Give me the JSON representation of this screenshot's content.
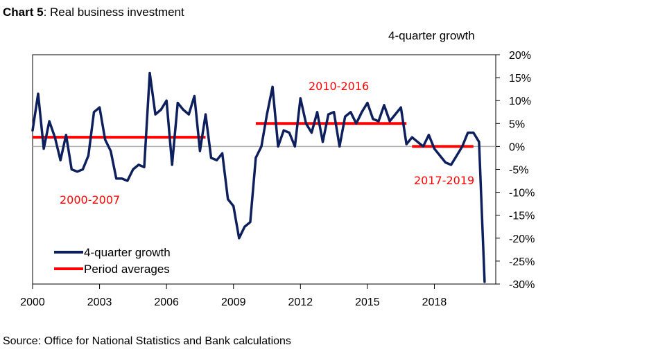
{
  "header": {
    "title_bold": "Chart 5",
    "title_rest": ": Real business investment"
  },
  "source": "Source: Office for National Statistics and Bank calculations",
  "chart_data": {
    "type": "line",
    "title": "Real business investment",
    "ylabel": "4-quarter growth",
    "xlabel": "",
    "ylim": [
      -30,
      20
    ],
    "xlim": [
      2000,
      2020.75
    ],
    "y_axis_side": "right",
    "y_ticks": [
      20,
      15,
      10,
      5,
      0,
      -5,
      -10,
      -15,
      -20,
      -25,
      -30
    ],
    "y_tick_labels": [
      "20%",
      "15%",
      "10%",
      "5%",
      "0%",
      "-5%",
      "-10%",
      "-15%",
      "-20%",
      "-25%",
      "-30%"
    ],
    "x_ticks": [
      2000,
      2003,
      2006,
      2009,
      2012,
      2015,
      2018
    ],
    "x_tick_labels": [
      "2000",
      "2003",
      "2006",
      "2009",
      "2012",
      "2015",
      "2018"
    ],
    "series": [
      {
        "name": "4-quarter growth",
        "color": "#0d1f5c",
        "x": [
          2000.0,
          2000.25,
          2000.5,
          2000.75,
          2001.0,
          2001.25,
          2001.5,
          2001.75,
          2002.0,
          2002.25,
          2002.5,
          2002.75,
          2003.0,
          2003.25,
          2003.5,
          2003.75,
          2004.0,
          2004.25,
          2004.5,
          2004.75,
          2005.0,
          2005.25,
          2005.5,
          2005.75,
          2006.0,
          2006.25,
          2006.5,
          2006.75,
          2007.0,
          2007.25,
          2007.5,
          2007.75,
          2008.0,
          2008.25,
          2008.5,
          2008.75,
          2009.0,
          2009.25,
          2009.5,
          2009.75,
          2010.0,
          2010.25,
          2010.5,
          2010.75,
          2011.0,
          2011.25,
          2011.5,
          2011.75,
          2012.0,
          2012.25,
          2012.5,
          2012.75,
          2013.0,
          2013.25,
          2013.5,
          2013.75,
          2014.0,
          2014.25,
          2014.5,
          2014.75,
          2015.0,
          2015.25,
          2015.5,
          2015.75,
          2016.0,
          2016.25,
          2016.5,
          2016.75,
          2017.0,
          2017.25,
          2017.5,
          2017.75,
          2018.0,
          2018.25,
          2018.5,
          2018.75,
          2019.0,
          2019.25,
          2019.5,
          2019.75,
          2020.0,
          2020.25
        ],
        "values": [
          3.5,
          11.5,
          -0.5,
          5.5,
          2.0,
          -3.0,
          2.5,
          -5.0,
          -5.5,
          -5.0,
          -2.0,
          7.5,
          8.5,
          1.5,
          -1.0,
          -7.0,
          -7.0,
          -7.5,
          -5.0,
          -4.0,
          -4.5,
          16.0,
          7.0,
          8.0,
          10.0,
          -4.0,
          9.5,
          8.0,
          7.0,
          11.0,
          -1.0,
          7.0,
          -2.5,
          -3.0,
          -1.5,
          -11.5,
          -13.0,
          -20.0,
          -17.5,
          -16.5,
          -2.5,
          0.0,
          7.0,
          13.0,
          0.0,
          3.5,
          3.0,
          0.0,
          10.5,
          5.0,
          3.0,
          7.5,
          1.0,
          7.0,
          7.5,
          0.0,
          6.5,
          7.5,
          5.0,
          7.5,
          9.5,
          6.0,
          5.5,
          9.0,
          5.5,
          7.0,
          8.5,
          0.5,
          2.0,
          1.0,
          0.0,
          2.5,
          -0.5,
          -2.0,
          -3.5,
          -4.0,
          -2.0,
          0.0,
          3.0,
          3.0,
          1.0,
          -29.5
        ]
      },
      {
        "name": "Period averages",
        "color": "#ff0000",
        "segments": [
          {
            "label": "2000-2007",
            "x": [
              2000.0,
              2007.75
            ],
            "value": 2.0
          },
          {
            "label": "2010-2016",
            "x": [
              2010.0,
              2016.75
            ],
            "value": 5.0
          },
          {
            "label": "2017-2019",
            "x": [
              2017.0,
              2019.75
            ],
            "value": 0.0
          }
        ]
      }
    ],
    "legend": {
      "position": "bottom-left",
      "entries": [
        "4-quarter growth",
        "Period averages"
      ]
    },
    "annotations": [
      "2000-2007",
      "2010-2016",
      "2017-2019"
    ]
  }
}
